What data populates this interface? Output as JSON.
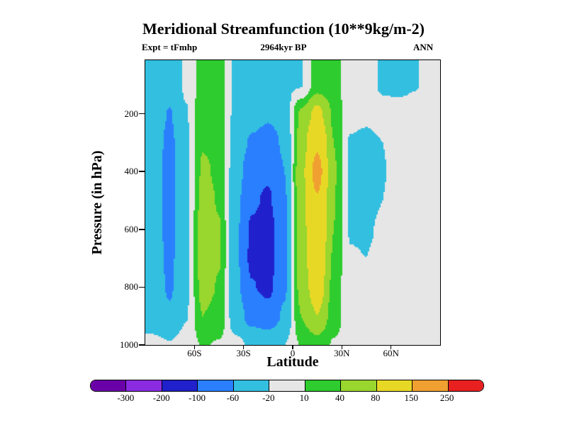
{
  "title": "Meridional Streamfunction (10**9kg/m-2)",
  "subtitle_left": "Expt = tFmhp",
  "subtitle_center": "2964kyr BP",
  "subtitle_right": "ANN",
  "axes": {
    "x_label": "Latitude",
    "y_label": "Pressure (in hPa)",
    "x_ticks": [
      "60S",
      "30S",
      "0",
      "30N",
      "60N"
    ],
    "y_ticks": [
      "200",
      "400",
      "600",
      "800",
      "1000"
    ]
  },
  "colorbar": {
    "labels": [
      "-300",
      "-200",
      "-100",
      "-60",
      "-20",
      "10",
      "40",
      "80",
      "150",
      "250"
    ],
    "colors": [
      "#6a00a8",
      "#8a2be2",
      "#2020cc",
      "#2a7fff",
      "#33bfe0",
      "#e6e6e6",
      "#2ecc2e",
      "#99d62e",
      "#e8d826",
      "#f0a030",
      "#e82020"
    ]
  },
  "chart_data": {
    "type": "heatmap",
    "subtype": "filled-contour",
    "title": "Meridional Streamfunction (10**9kg/m-2)",
    "xlabel": "Latitude",
    "ylabel": "Pressure (in hPa)",
    "annotations": [
      "Expt = tFmhp",
      "2964kyr BP",
      "ANN"
    ],
    "units": "10**9 kg/m-2",
    "x_lat": [
      -85,
      -75,
      -65,
      -55,
      -45,
      -35,
      -25,
      -15,
      -5,
      5,
      15,
      25,
      35,
      45,
      55,
      65,
      75,
      85
    ],
    "y_pressure": [
      100,
      200,
      300,
      400,
      500,
      600,
      700,
      800,
      900,
      1000
    ],
    "values": [
      [
        -35,
        -45,
        -15,
        25,
        22,
        -28,
        -30,
        -28,
        -25,
        -22,
        25,
        22,
        -10,
        -8,
        -24,
        -28,
        -22,
        0
      ],
      [
        -42,
        -62,
        -22,
        32,
        28,
        -30,
        -45,
        -55,
        -45,
        45,
        95,
        35,
        -12,
        -15,
        -10,
        -8,
        -5,
        0
      ],
      [
        -46,
        -68,
        -26,
        38,
        32,
        -35,
        -65,
        -75,
        -55,
        55,
        140,
        40,
        -22,
        -26,
        -20,
        -5,
        0,
        0
      ],
      [
        -48,
        -70,
        -28,
        45,
        35,
        -42,
        -85,
        -95,
        -60,
        65,
        175,
        45,
        -24,
        -28,
        -22,
        -5,
        0,
        0
      ],
      [
        -48,
        -70,
        -30,
        52,
        38,
        -48,
        -95,
        -105,
        -65,
        65,
        145,
        42,
        -24,
        -28,
        -20,
        0,
        0,
        0
      ],
      [
        -47,
        -69,
        -30,
        58,
        42,
        -52,
        -105,
        -115,
        -70,
        62,
        135,
        40,
        -22,
        -24,
        -15,
        0,
        0,
        0
      ],
      [
        -46,
        -67,
        -29,
        58,
        42,
        -52,
        -108,
        -118,
        -70,
        58,
        125,
        36,
        -18,
        -20,
        -10,
        0,
        0,
        0
      ],
      [
        -44,
        -64,
        -27,
        52,
        38,
        -48,
        -98,
        -108,
        -65,
        52,
        110,
        30,
        -12,
        -14,
        -5,
        0,
        0,
        0
      ],
      [
        -38,
        -55,
        -22,
        40,
        30,
        -40,
        -75,
        -85,
        -55,
        40,
        80,
        22,
        -5,
        -5,
        0,
        0,
        0,
        0
      ],
      [
        -12,
        -18,
        -5,
        12,
        8,
        -12,
        -25,
        -30,
        -20,
        12,
        25,
        8,
        0,
        0,
        0,
        0,
        0,
        0
      ]
    ],
    "levels": [
      -300,
      -200,
      -100,
      -60,
      -20,
      10,
      40,
      80,
      150,
      250
    ],
    "level_colors": [
      "#6a00a8",
      "#8a2be2",
      "#2020cc",
      "#2a7fff",
      "#33bfe0",
      "#e6e6e6",
      "#2ecc2e",
      "#99d62e",
      "#e8d826",
      "#f0a030",
      "#e82020"
    ],
    "background_color": "#e6e6e6",
    "lat_range": [
      -90,
      90
    ],
    "pressure_range": [
      15,
      1000
    ],
    "x_tick_lats": [
      -60,
      -30,
      0,
      30,
      60
    ],
    "y_tick_pressures": [
      200,
      400,
      600,
      800,
      1000
    ],
    "grid": false,
    "legend_position": "bottom-colorbar"
  }
}
